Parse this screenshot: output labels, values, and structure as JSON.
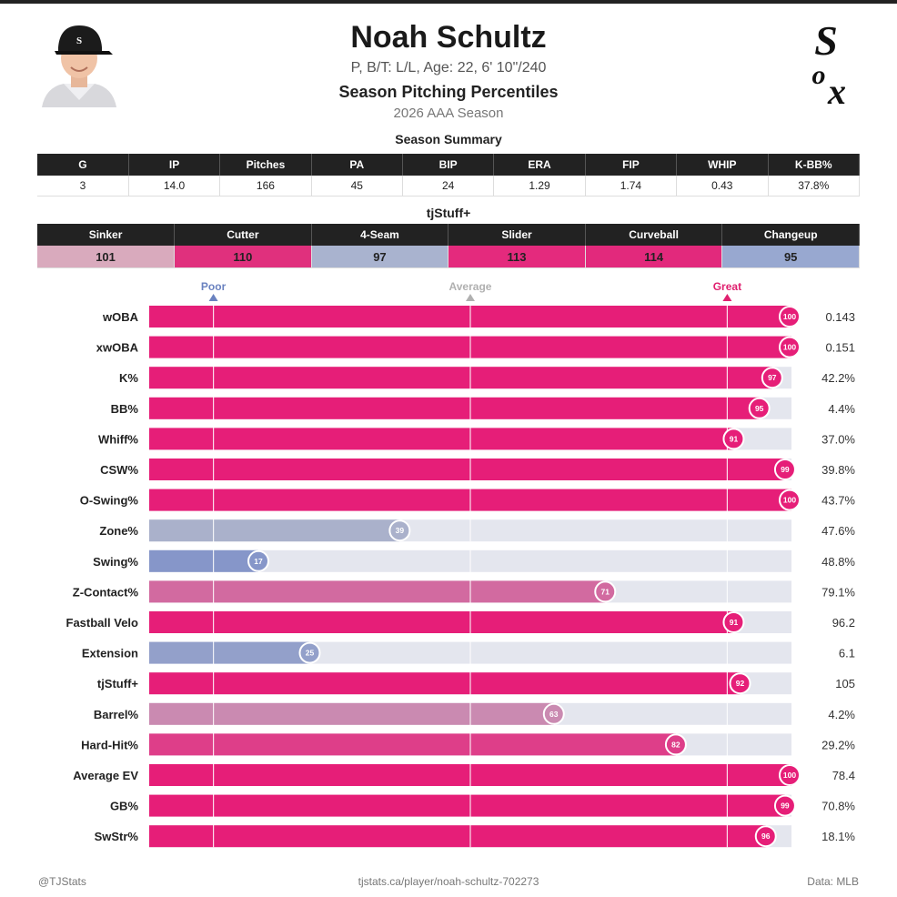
{
  "header": {
    "name": "Noah Schultz",
    "info": "P, B/T: L/L, Age: 22, 6' 10\"/240",
    "title": "Season Pitching Percentiles",
    "season": "2026 AAA Season",
    "logo_text": "Sox"
  },
  "summary": {
    "title": "Season Summary",
    "headers": [
      "G",
      "IP",
      "Pitches",
      "PA",
      "BIP",
      "ERA",
      "FIP",
      "WHIP",
      "K-BB%"
    ],
    "values": [
      "3",
      "14.0",
      "166",
      "45",
      "24",
      "1.29",
      "1.74",
      "0.43",
      "37.8%"
    ]
  },
  "stuff": {
    "title": "tjStuff+",
    "headers": [
      "Sinker",
      "Cutter",
      "4-Seam",
      "Slider",
      "Curveball",
      "Changeup"
    ],
    "values": [
      "101",
      "110",
      "97",
      "113",
      "114",
      "95"
    ],
    "colors": [
      "#d9aabd",
      "#e0307d",
      "#a9b3cf",
      "#e42a7d",
      "#e2297c",
      "#98a8d0"
    ]
  },
  "footer": {
    "left": "@TJStats",
    "center": "tjstats.ca/player/noah-schultz-702273",
    "right": "Data: MLB"
  },
  "chart_data": {
    "type": "bar",
    "orientation": "horizontal",
    "title": "Season Pitching Percentiles",
    "xlim": [
      0,
      100
    ],
    "reference_lines": [
      {
        "label": "Poor",
        "value": 10,
        "color": "#6a82c0"
      },
      {
        "label": "Average",
        "value": 50,
        "color": "#b0b0b0"
      },
      {
        "label": "Great",
        "value": 90,
        "color": "#e0206f"
      }
    ],
    "categories": [
      "wOBA",
      "xwOBA",
      "K%",
      "BB%",
      "Whiff%",
      "CSW%",
      "O-Swing%",
      "Zone%",
      "Swing%",
      "Z-Contact%",
      "Fastball Velo",
      "Extension",
      "tjStuff+",
      "Barrel%",
      "Hard-Hit%",
      "Average EV",
      "GB%",
      "SwStr%"
    ],
    "percentiles": [
      100,
      100,
      97,
      95,
      91,
      99,
      100,
      39,
      17,
      71,
      91,
      25,
      92,
      63,
      82,
      100,
      99,
      96
    ],
    "values": [
      "0.143",
      "0.151",
      "42.2%",
      "4.4%",
      "37.0%",
      "39.8%",
      "43.7%",
      "47.6%",
      "48.8%",
      "79.1%",
      "96.2",
      "6.1",
      "105",
      "4.2%",
      "29.2%",
      "78.4",
      "70.8%",
      "18.1%"
    ],
    "grid": false,
    "legend": "none"
  }
}
